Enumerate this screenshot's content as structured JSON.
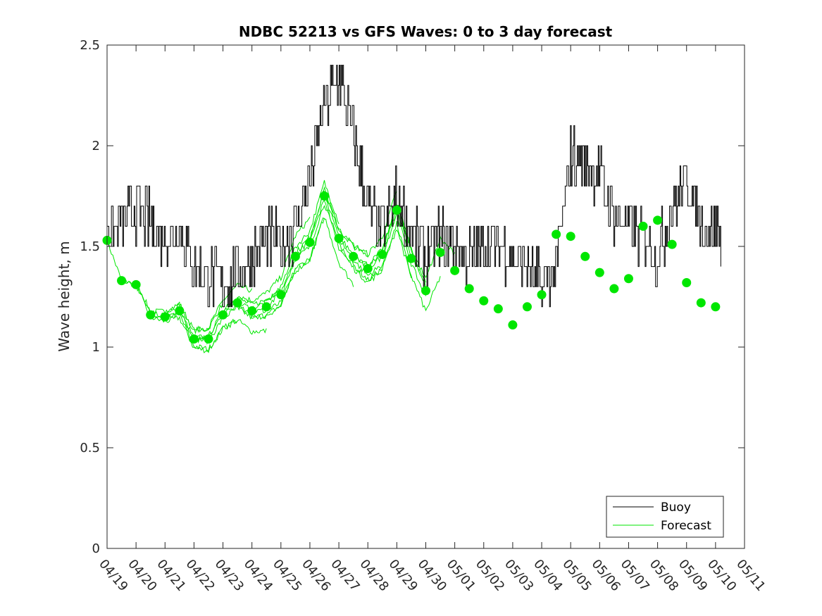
{
  "chart_data": {
    "type": "line",
    "title": "NDBC 52213 vs GFS Waves: 0 to 3 day forecast",
    "xlabel": "",
    "ylabel": "Wave height, m",
    "ylim": [
      0,
      2.5
    ],
    "yticks": [
      0,
      0.5,
      1,
      1.5,
      2,
      2.5
    ],
    "ytick_labels": [
      "0",
      "0.5",
      "1",
      "1.5",
      "2",
      "2.5"
    ],
    "xlim_days": [
      0,
      22
    ],
    "xtick_labels": [
      "04/19",
      "04/20",
      "04/21",
      "04/22",
      "04/23",
      "04/24",
      "04/25",
      "04/26",
      "04/27",
      "04/28",
      "04/29",
      "04/30",
      "05/01",
      "05/02",
      "05/03",
      "05/04",
      "05/05",
      "05/06",
      "05/07",
      "05/08",
      "05/09",
      "05/10",
      "05/11"
    ],
    "grid": false,
    "legend_position": "bottom-right",
    "colors": {
      "buoy": "#000000",
      "forecast": "#00e600",
      "axis": "#262626"
    },
    "series": [
      {
        "name": "Buoy",
        "x_days": [
          0,
          0.5,
          1,
          1.5,
          2,
          2.5,
          3,
          3.5,
          4,
          4.5,
          5,
          5.5,
          6,
          6.5,
          7,
          7.5,
          8,
          8.5,
          9,
          9.5,
          10,
          10.5,
          11,
          11.5,
          12,
          12.5,
          13,
          13.5,
          14,
          14.5,
          15,
          15.5,
          16,
          16.5,
          17,
          17.5,
          18,
          18.5,
          19,
          19.5,
          20,
          20.5,
          21,
          21.2
        ],
        "values": [
          1.6,
          1.62,
          1.68,
          1.62,
          1.55,
          1.6,
          1.4,
          1.35,
          1.3,
          1.38,
          1.45,
          1.55,
          1.5,
          1.6,
          1.85,
          2.2,
          2.35,
          2.05,
          1.7,
          1.55,
          1.75,
          1.55,
          1.45,
          1.55,
          1.5,
          1.45,
          1.5,
          1.52,
          1.45,
          1.38,
          1.3,
          1.4,
          1.95,
          1.9,
          1.85,
          1.65,
          1.6,
          1.55,
          1.45,
          1.7,
          1.85,
          1.6,
          1.6,
          1.55
        ]
      },
      {
        "name": "Forecast",
        "x_days": [
          0,
          0.5,
          1,
          1.5,
          2,
          2.5,
          3,
          3.5,
          4,
          4.5,
          5,
          5.5,
          6,
          6.5,
          7,
          7.5,
          8,
          8.5,
          9,
          9.5,
          10,
          10.5,
          11,
          11.5,
          12,
          12.5,
          13,
          13.5,
          14,
          14.5,
          15,
          15.5,
          16,
          16.5,
          17,
          17.5,
          18,
          18.5,
          19,
          19.5,
          20,
          20.5,
          21
        ],
        "values": [
          1.53,
          1.33,
          1.31,
          1.16,
          1.15,
          1.18,
          1.04,
          1.04,
          1.16,
          1.22,
          1.18,
          1.2,
          1.26,
          1.45,
          1.52,
          1.75,
          1.54,
          1.45,
          1.39,
          1.46,
          1.68,
          1.44,
          1.28,
          1.47,
          1.38,
          1.29,
          1.23,
          1.19,
          1.11,
          1.2,
          1.26,
          1.56,
          1.55,
          1.45,
          1.37,
          1.29,
          1.34,
          1.6,
          1.63,
          1.51,
          1.32,
          1.22,
          1.2
        ]
      }
    ]
  }
}
